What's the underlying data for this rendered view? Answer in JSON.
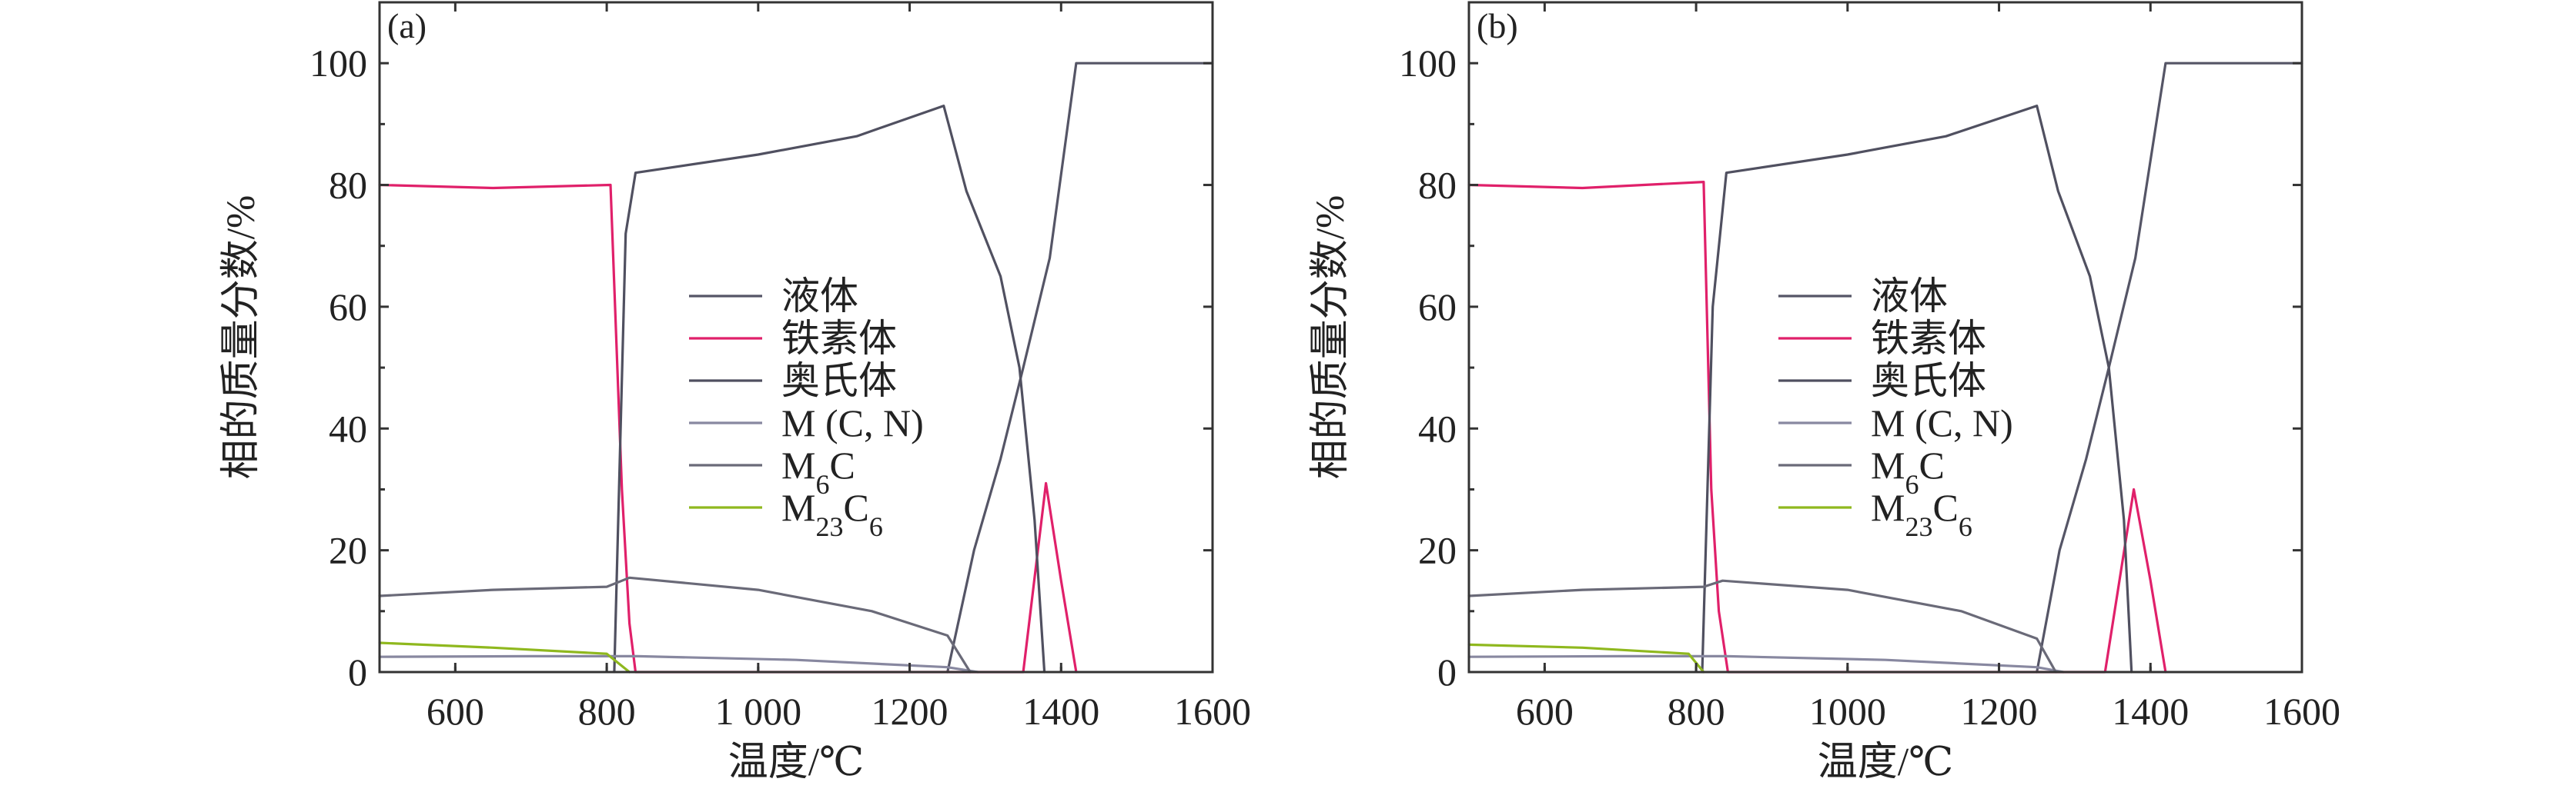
{
  "chart_data": [
    {
      "type": "line",
      "panel_label": "(a)",
      "xlabel": "温度/℃",
      "ylabel": "相的质量分数/%",
      "xlim": [
        500,
        1600
      ],
      "ylim": [
        0,
        110
      ],
      "xticks": [
        600,
        800,
        1000,
        1200,
        1400,
        1600
      ],
      "xtick_labels": [
        "600",
        "800",
        "1 000",
        "1200",
        "1400",
        "1600"
      ],
      "yticks": [
        0,
        20,
        40,
        60,
        80,
        100
      ],
      "ytick_labels": [
        "0",
        "20",
        "40",
        "60",
        "80",
        "100"
      ],
      "legend_position": "center",
      "series": [
        {
          "name": "液体",
          "color": "#555566",
          "x": [
            1250,
            1285,
            1320,
            1350,
            1385,
            1420,
            1600
          ],
          "y": [
            0,
            20,
            35,
            50,
            68,
            100,
            100
          ]
        },
        {
          "name": "铁素体",
          "color": "#e0206a",
          "x": [
            500,
            650,
            805,
            820,
            830,
            838,
            1350,
            1380,
            1400,
            1420
          ],
          "y": [
            80,
            79.5,
            80,
            30,
            8,
            0,
            0,
            31,
            15,
            0
          ]
        },
        {
          "name": "奥氏体",
          "color": "#505060",
          "x": [
            810,
            825,
            838,
            1000,
            1130,
            1245,
            1275,
            1320,
            1345,
            1365,
            1378
          ],
          "y": [
            0,
            72,
            82,
            85,
            88,
            93,
            79,
            65,
            50,
            25,
            0
          ]
        },
        {
          "name": "M (C, N)",
          "color": "#8888a0",
          "x": [
            500,
            700,
            840,
            1050,
            1250,
            1290
          ],
          "y": [
            2.5,
            2.6,
            2.6,
            2,
            0.8,
            0
          ]
        },
        {
          "name": "M6C",
          "color": "#6a6a78",
          "x": [
            500,
            650,
            800,
            830,
            1000,
            1150,
            1250,
            1280
          ],
          "y": [
            12.5,
            13.5,
            14,
            15.5,
            13.5,
            10,
            6,
            0
          ]
        },
        {
          "name": "M23C6",
          "color": "#8fb81e",
          "x": [
            500,
            650,
            800,
            830
          ],
          "y": [
            4.8,
            4,
            3,
            0
          ]
        }
      ]
    },
    {
      "type": "line",
      "panel_label": "(b)",
      "xlabel": "温度/℃",
      "ylabel": "相的质量分数/%",
      "xlim": [
        500,
        1600
      ],
      "ylim": [
        0,
        110
      ],
      "xticks": [
        600,
        800,
        1000,
        1200,
        1400,
        1600
      ],
      "xtick_labels": [
        "600",
        "800",
        "1000",
        "1200",
        "1400",
        "1600"
      ],
      "yticks": [
        0,
        20,
        40,
        60,
        80,
        100
      ],
      "ytick_labels": [
        "0",
        "20",
        "40",
        "60",
        "80",
        "100"
      ],
      "legend_position": "center",
      "series": [
        {
          "name": "液体",
          "color": "#555566",
          "x": [
            1250,
            1280,
            1315,
            1345,
            1380,
            1420,
            1600
          ],
          "y": [
            0,
            20,
            35,
            50,
            68,
            100,
            100
          ]
        },
        {
          "name": "铁素体",
          "color": "#e0206a",
          "x": [
            500,
            650,
            810,
            820,
            830,
            842,
            1340,
            1378,
            1400,
            1420
          ],
          "y": [
            80,
            79.5,
            80.5,
            30,
            10,
            0,
            0,
            30,
            15,
            0
          ]
        },
        {
          "name": "奥氏体",
          "color": "#505060",
          "x": [
            808,
            822,
            840,
            1000,
            1130,
            1250,
            1278,
            1320,
            1345,
            1365,
            1375
          ],
          "y": [
            0,
            60,
            82,
            85,
            88,
            93,
            79,
            65,
            50,
            25,
            0
          ]
        },
        {
          "name": "M (C, N)",
          "color": "#8888a0",
          "x": [
            500,
            700,
            840,
            1050,
            1250,
            1285
          ],
          "y": [
            2.5,
            2.6,
            2.6,
            2,
            0.8,
            0
          ]
        },
        {
          "name": "M6C",
          "color": "#6a6a78",
          "x": [
            500,
            650,
            810,
            835,
            1000,
            1150,
            1250,
            1275
          ],
          "y": [
            12.5,
            13.5,
            14,
            15,
            13.5,
            10,
            5.5,
            0
          ]
        },
        {
          "name": "M23C6",
          "color": "#8fb81e",
          "x": [
            500,
            650,
            790,
            810
          ],
          "y": [
            4.5,
            4,
            3,
            0
          ]
        }
      ]
    }
  ]
}
